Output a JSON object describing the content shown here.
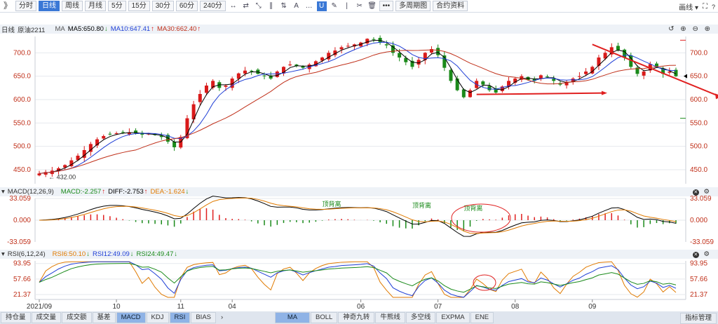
{
  "toolbar": {
    "items": [
      "》",
      "分时",
      "日线",
      "周线",
      "月线",
      "5分",
      "15分",
      "30分",
      "60分",
      "240分",
      "•••",
      "多周期图",
      "合约资料"
    ],
    "active": "日线",
    "right_label": "画线"
  },
  "main_info": {
    "period": "日线",
    "contract": "原油2211",
    "ma_label": "MA",
    "ma5": "MA5:650.80",
    "ma10": "MA10:647.41",
    "ma30": "MA30:662.40",
    "ma5_arrow": "↓",
    "ma10_arrow": "↑",
    "ma30_arrow": "↑"
  },
  "macd_info": {
    "label": "MACD(12,26,9)",
    "macd": "MACD:-2.257",
    "diff": "DIFF:-2.753",
    "dea": "DEA:-1.624",
    "macd_arrow": "↑",
    "diff_arrow": "↑",
    "dea_arrow": "↓"
  },
  "rsi_info": {
    "label": "RSI(6,12,24)",
    "rsi6": "RSI6:50.10",
    "rsi12": "RSI12:49.09",
    "rsi24": "RSI24:49.47",
    "rsi6_arrow": "↓",
    "rsi12_arrow": "↓",
    "rsi24_arrow": "↓"
  },
  "bottom_tabs": [
    "持仓量",
    "成交量",
    "成交额",
    "基差",
    "MACD",
    "KDJ",
    "RSI",
    "BIAS",
    "›",
    "MA",
    "BOLL",
    "神奇九转",
    "牛熊线",
    "多空线",
    "EXPMA",
    "ENE"
  ],
  "bottom_active": [
    "MACD",
    "RSI",
    "MA"
  ],
  "bottom_right": "指标管理",
  "chart_data": [
    {
      "type": "candlestick",
      "yticks": [
        "700.0",
        "650.0",
        "600.0",
        "550.0",
        "500.0",
        "450.0"
      ],
      "ylim": [
        420,
        735
      ],
      "x_labels": [
        "2021/09",
        "10",
        "11",
        "04",
        "06",
        "07",
        "08",
        "09"
      ],
      "low_label": "432.00",
      "annotation_left": "432.00",
      "close_trend": [
        442,
        445,
        448,
        453,
        460,
        470,
        480,
        492,
        505,
        515,
        522,
        526,
        528,
        530,
        530,
        528,
        525,
        527,
        524,
        520,
        510,
        498,
        520,
        560,
        590,
        612,
        630,
        640,
        625,
        630,
        645,
        656,
        662,
        660,
        655,
        650,
        645,
        660,
        670,
        675,
        672,
        668,
        675,
        682,
        690,
        700,
        705,
        712,
        715,
        718,
        722,
        730,
        728,
        722,
        716,
        700,
        690,
        680,
        670,
        685,
        700,
        708,
        695,
        668,
        640,
        620,
        605,
        620,
        640,
        632,
        620,
        615,
        628,
        640,
        645,
        650,
        642,
        640,
        652,
        648,
        640,
        632,
        638,
        645,
        650,
        660,
        670,
        690,
        700,
        712,
        706,
        690,
        670,
        655,
        660,
        676,
        670,
        655,
        660,
        650
      ],
      "ma_colors": {
        "ma5": "#000000",
        "ma10": "#1f3fd6",
        "ma30": "#c0301a"
      },
      "up_color": "#d91a1a",
      "down_color": "#1a8a1a"
    },
    {
      "type": "macd",
      "yticks": [
        "33.059",
        "0.000",
        "-33.059"
      ],
      "ylim": [
        -33.059,
        33.059
      ],
      "annotations": [
        "顶背离",
        "顶背离",
        "顶背离"
      ]
    },
    {
      "type": "line",
      "name": "RSI",
      "yticks": [
        "93.95",
        "57.66",
        "21.37"
      ],
      "ylim": [
        10,
        100
      ]
    }
  ]
}
